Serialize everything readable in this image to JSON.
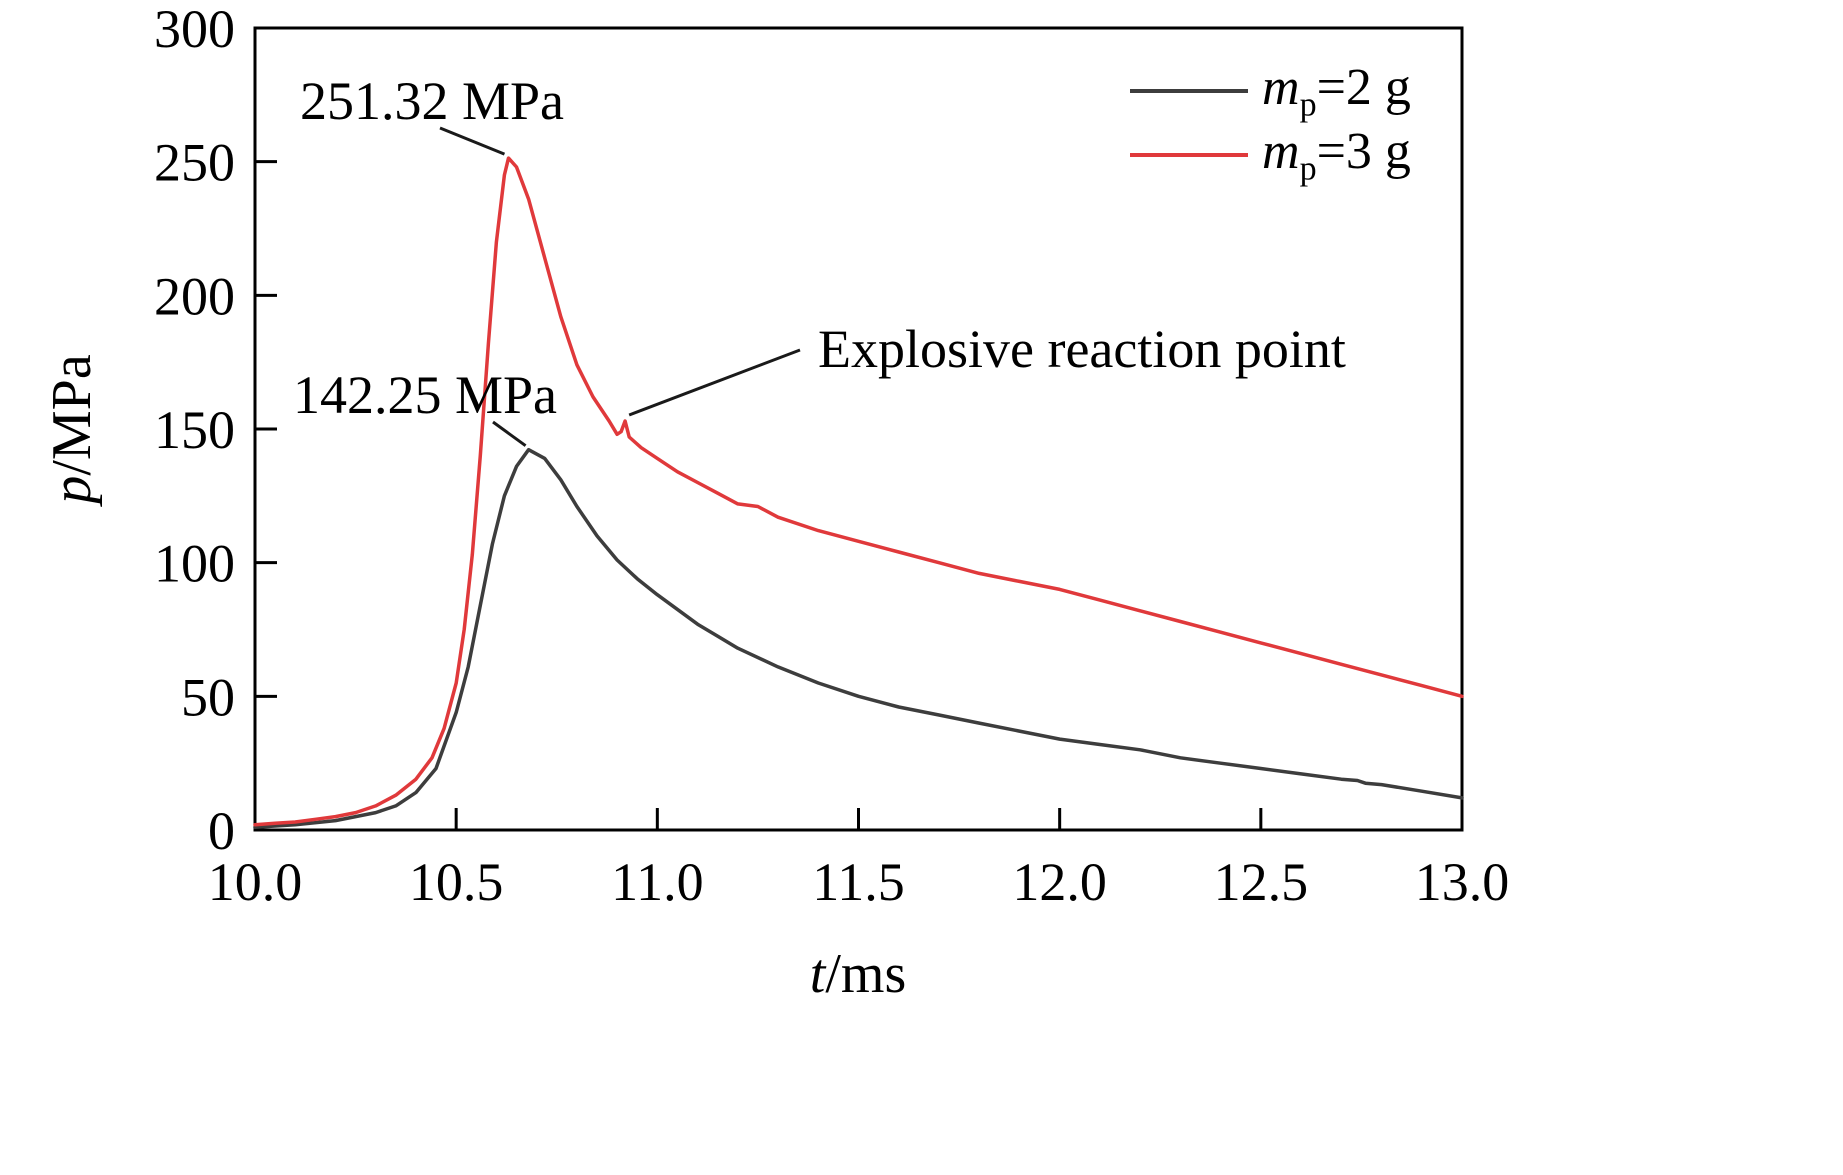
{
  "figure": {
    "background": "#ffffff"
  },
  "labels": {
    "xlabel_var": "t",
    "xlabel_rest": "/ms",
    "ylabel_var": "p",
    "ylabel_rest": "/MPa"
  },
  "annotations": {
    "peak_mp3": "251.32 MPa",
    "peak_mp2": "142.25 MPa",
    "reaction": "Explosive reaction point"
  },
  "legend": {
    "entries": [
      {
        "var": "m",
        "sub": "p",
        "rest": "=2 g"
      },
      {
        "var": "m",
        "sub": "p",
        "rest": "=3 g"
      }
    ]
  },
  "chart_data": {
    "type": "line",
    "title": "",
    "xlabel": "t/ms",
    "ylabel": "p/MPa",
    "xlim": [
      10.0,
      13.0
    ],
    "ylim": [
      0,
      300
    ],
    "x_tick_step": 0.5,
    "y_tick_step": 50,
    "x_tick_labels": [
      "10.0",
      "10.5",
      "11.0",
      "11.5",
      "12.0",
      "12.5",
      "13.0"
    ],
    "y_tick_labels": [
      "0",
      "50",
      "100",
      "150",
      "200",
      "250",
      "300"
    ],
    "grid": false,
    "legend_position": "top-right",
    "frame_color": "#000000",
    "series": [
      {
        "name": "m_p=2 g",
        "color": "#3d3d3d",
        "points": [
          [
            10.0,
            1
          ],
          [
            10.1,
            2
          ],
          [
            10.2,
            3.5
          ],
          [
            10.3,
            6.5
          ],
          [
            10.35,
            9
          ],
          [
            10.4,
            14
          ],
          [
            10.45,
            23
          ],
          [
            10.5,
            44
          ],
          [
            10.53,
            61
          ],
          [
            10.56,
            84
          ],
          [
            10.59,
            107
          ],
          [
            10.62,
            125
          ],
          [
            10.65,
            136
          ],
          [
            10.68,
            142.25
          ],
          [
            10.72,
            139
          ],
          [
            10.76,
            131
          ],
          [
            10.8,
            121
          ],
          [
            10.85,
            110
          ],
          [
            10.9,
            101
          ],
          [
            10.95,
            94
          ],
          [
            11.0,
            88
          ],
          [
            11.1,
            77
          ],
          [
            11.2,
            68
          ],
          [
            11.3,
            61
          ],
          [
            11.4,
            55
          ],
          [
            11.5,
            50
          ],
          [
            11.6,
            46
          ],
          [
            11.7,
            43
          ],
          [
            11.8,
            40
          ],
          [
            11.9,
            37
          ],
          [
            12.0,
            34
          ],
          [
            12.1,
            32
          ],
          [
            12.2,
            30
          ],
          [
            12.3,
            27
          ],
          [
            12.4,
            25
          ],
          [
            12.5,
            23
          ],
          [
            12.6,
            21
          ],
          [
            12.7,
            19
          ],
          [
            12.74,
            18.5
          ],
          [
            12.76,
            17.5
          ],
          [
            12.8,
            17
          ],
          [
            12.9,
            14.5
          ],
          [
            13.0,
            12
          ]
        ]
      },
      {
        "name": "m_p=3 g",
        "color": "#e0393b",
        "points": [
          [
            10.0,
            2
          ],
          [
            10.05,
            2.5
          ],
          [
            10.1,
            3
          ],
          [
            10.15,
            4
          ],
          [
            10.2,
            5
          ],
          [
            10.25,
            6.5
          ],
          [
            10.3,
            9
          ],
          [
            10.35,
            13
          ],
          [
            10.4,
            19
          ],
          [
            10.44,
            27
          ],
          [
            10.47,
            38
          ],
          [
            10.5,
            55
          ],
          [
            10.52,
            75
          ],
          [
            10.54,
            103
          ],
          [
            10.56,
            140
          ],
          [
            10.58,
            182
          ],
          [
            10.6,
            220
          ],
          [
            10.62,
            245
          ],
          [
            10.63,
            251.32
          ],
          [
            10.65,
            248
          ],
          [
            10.68,
            236
          ],
          [
            10.72,
            214
          ],
          [
            10.76,
            192
          ],
          [
            10.8,
            174
          ],
          [
            10.84,
            162
          ],
          [
            10.88,
            153
          ],
          [
            10.9,
            148
          ],
          [
            10.91,
            149
          ],
          [
            10.92,
            153
          ],
          [
            10.93,
            147
          ],
          [
            10.96,
            143
          ],
          [
            11.0,
            139
          ],
          [
            11.05,
            134
          ],
          [
            11.1,
            130
          ],
          [
            11.15,
            126
          ],
          [
            11.2,
            122
          ],
          [
            11.25,
            121
          ],
          [
            11.3,
            117
          ],
          [
            11.4,
            112
          ],
          [
            11.5,
            108
          ],
          [
            11.6,
            104
          ],
          [
            11.7,
            100
          ],
          [
            11.8,
            96
          ],
          [
            11.9,
            93
          ],
          [
            12.0,
            90
          ],
          [
            12.1,
            86
          ],
          [
            12.2,
            82
          ],
          [
            12.3,
            78
          ],
          [
            12.4,
            74
          ],
          [
            12.5,
            70
          ],
          [
            12.6,
            66
          ],
          [
            12.7,
            62
          ],
          [
            12.8,
            58
          ],
          [
            12.9,
            54
          ],
          [
            13.0,
            50
          ]
        ]
      }
    ],
    "annotations": [
      {
        "text": "251.32 MPa",
        "series": "m_p=3 g",
        "target": [
          10.63,
          251.32
        ]
      },
      {
        "text": "142.25 MPa",
        "series": "m_p=2 g",
        "target": [
          10.68,
          142.25
        ]
      },
      {
        "text": "Explosive reaction point",
        "series": "m_p=3 g",
        "target": [
          10.92,
          153
        ]
      }
    ]
  }
}
